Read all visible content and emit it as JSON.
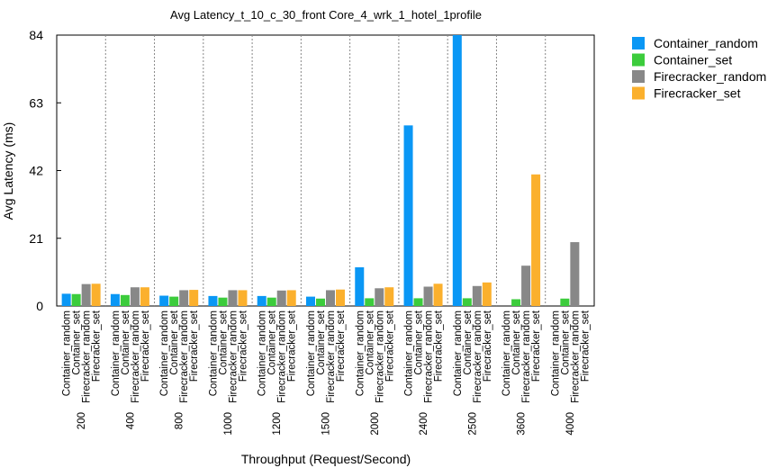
{
  "chart_data": {
    "type": "bar",
    "title": "Avg Latency_t_10_c_30_front Core_4_wrk_1_hotel_1profile",
    "xlabel": "Throughput (Request/Second)",
    "ylabel": "Avg Latency (ms)",
    "ylim": [
      0,
      84
    ],
    "yticks": [
      "0",
      "21",
      "42",
      "63",
      "84"
    ],
    "grid": "vertical dotted separators between groups",
    "legend_position": "outside-right",
    "categories": [
      "200",
      "400",
      "800",
      "1000",
      "1200",
      "1500",
      "2000",
      "2400",
      "2500",
      "3600",
      "4000"
    ],
    "series": [
      {
        "name": "Container_random",
        "color": "#0a97f5",
        "values": [
          3.8,
          3.7,
          3.2,
          3.1,
          3.1,
          2.9,
          12.0,
          56.0,
          84.0,
          null,
          null
        ]
      },
      {
        "name": "Container_set",
        "color": "#3ccc3c",
        "values": [
          3.7,
          3.4,
          2.9,
          2.6,
          2.6,
          2.3,
          2.4,
          2.4,
          2.4,
          2.1,
          2.3
        ]
      },
      {
        "name": "Firecracker_random",
        "color": "#888888",
        "values": [
          6.8,
          5.8,
          4.9,
          4.9,
          4.8,
          4.9,
          5.5,
          6.0,
          6.2,
          12.5,
          19.8
        ]
      },
      {
        "name": "Firecracker_set",
        "color": "#fbb02d",
        "values": [
          6.9,
          5.8,
          5.0,
          4.9,
          4.9,
          5.1,
          5.8,
          6.9,
          7.3,
          40.8,
          null
        ]
      }
    ]
  }
}
